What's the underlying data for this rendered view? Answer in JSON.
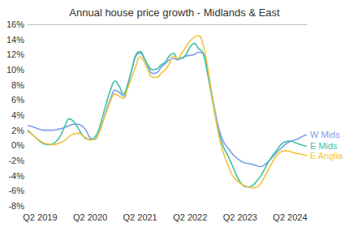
{
  "chart_data": {
    "type": "line",
    "title": "Annual house price growth - Midlands & East",
    "categories": [
      null,
      null,
      null,
      "Q2 2019",
      null,
      null,
      null,
      null,
      null,
      null,
      null,
      null,
      null,
      null,
      null,
      "Q2 2020",
      null,
      null,
      null,
      null,
      null,
      null,
      null,
      null,
      null,
      null,
      null,
      "Q2 2021",
      null,
      null,
      null,
      null,
      null,
      null,
      null,
      null,
      null,
      null,
      null,
      "Q2 2022",
      null,
      null,
      null,
      null,
      null,
      null,
      null,
      null,
      null,
      null,
      null,
      "Q2 2023",
      null,
      null,
      null,
      null,
      null,
      null,
      null,
      null,
      null,
      null,
      null,
      "Q2 2024",
      null,
      null,
      null,
      null
    ],
    "series": [
      {
        "name": "W Mids",
        "color": "#7b9cf0",
        "values": [
          2.6,
          2.5,
          2.3,
          2.1,
          2.0,
          2.0,
          2.0,
          2.1,
          2.2,
          2.4,
          2.6,
          2.8,
          2.8,
          2.6,
          2.0,
          1.0,
          0.8,
          1.5,
          3.0,
          4.8,
          6.3,
          7.3,
          7.0,
          6.5,
          8.0,
          10.0,
          11.8,
          12.2,
          11.5,
          10.3,
          9.5,
          9.6,
          10.3,
          10.8,
          11.3,
          11.5,
          11.3,
          11.6,
          11.8,
          11.9,
          12.0,
          12.3,
          12.2,
          10.5,
          7.5,
          4.5,
          2.0,
          0.5,
          -0.3,
          -1.0,
          -1.6,
          -2.0,
          -2.3,
          -2.4,
          -2.5,
          -2.7,
          -2.8,
          -2.5,
          -2.0,
          -1.4,
          -0.8,
          -0.3,
          0.2,
          0.5,
          0.7,
          0.9,
          1.2,
          1.4
        ]
      },
      {
        "name": "E Mids",
        "color": "#3fc1a5",
        "values": [
          2.0,
          1.5,
          1.0,
          0.5,
          0.2,
          0.1,
          0.2,
          0.6,
          1.4,
          2.6,
          3.5,
          3.2,
          2.4,
          1.5,
          0.9,
          0.8,
          1.0,
          2.0,
          3.8,
          5.8,
          7.5,
          8.5,
          7.8,
          6.8,
          8.0,
          10.0,
          12.0,
          12.4,
          11.5,
          10.5,
          10.0,
          10.1,
          10.6,
          11.0,
          11.8,
          12.2,
          11.5,
          11.5,
          12.0,
          13.0,
          13.5,
          12.8,
          12.3,
          10.0,
          7.0,
          4.0,
          1.5,
          -0.2,
          -1.3,
          -2.5,
          -3.8,
          -4.8,
          -5.4,
          -5.5,
          -5.3,
          -4.7,
          -4.0,
          -3.0,
          -2.0,
          -1.2,
          -0.5,
          0.2,
          0.5,
          0.6,
          0.4,
          0.2,
          0.0,
          -0.1
        ]
      },
      {
        "name": "E Anglia",
        "color": "#f3c33c",
        "values": [
          1.8,
          1.5,
          1.0,
          0.6,
          0.3,
          0.2,
          0.1,
          0.2,
          0.4,
          0.7,
          1.2,
          1.5,
          1.6,
          1.4,
          1.0,
          0.7,
          0.8,
          1.5,
          3.0,
          4.5,
          6.0,
          6.8,
          6.5,
          6.2,
          7.5,
          9.0,
          10.5,
          11.7,
          11.0,
          9.8,
          9.0,
          9.0,
          9.5,
          10.0,
          10.8,
          11.8,
          11.5,
          12.2,
          13.0,
          13.8,
          14.3,
          14.5,
          13.5,
          11.0,
          7.5,
          4.0,
          1.0,
          -1.0,
          -2.5,
          -3.8,
          -4.5,
          -5.0,
          -5.3,
          -5.5,
          -5.6,
          -5.5,
          -5.0,
          -4.0,
          -3.0,
          -2.0,
          -1.2,
          -0.8,
          -0.7,
          -0.8,
          -1.0,
          -1.1,
          -1.2,
          -1.4
        ]
      }
    ],
    "ylim": [
      -8,
      16
    ],
    "yticks": [
      {
        "value": -8,
        "label": "-8%"
      },
      {
        "value": -6,
        "label": "-6%"
      },
      {
        "value": -4,
        "label": "-4%"
      },
      {
        "value": -2,
        "label": "-2%"
      },
      {
        "value": 0,
        "label": "0%"
      },
      {
        "value": 2,
        "label": "2%"
      },
      {
        "value": 4,
        "label": "4%"
      },
      {
        "value": 6,
        "label": "6%"
      },
      {
        "value": 8,
        "label": "8%"
      },
      {
        "value": 10,
        "label": "10%"
      },
      {
        "value": 12,
        "label": "12%"
      },
      {
        "value": 14,
        "label": "14%"
      },
      {
        "value": 16,
        "label": "16%"
      }
    ],
    "grid": false
  }
}
